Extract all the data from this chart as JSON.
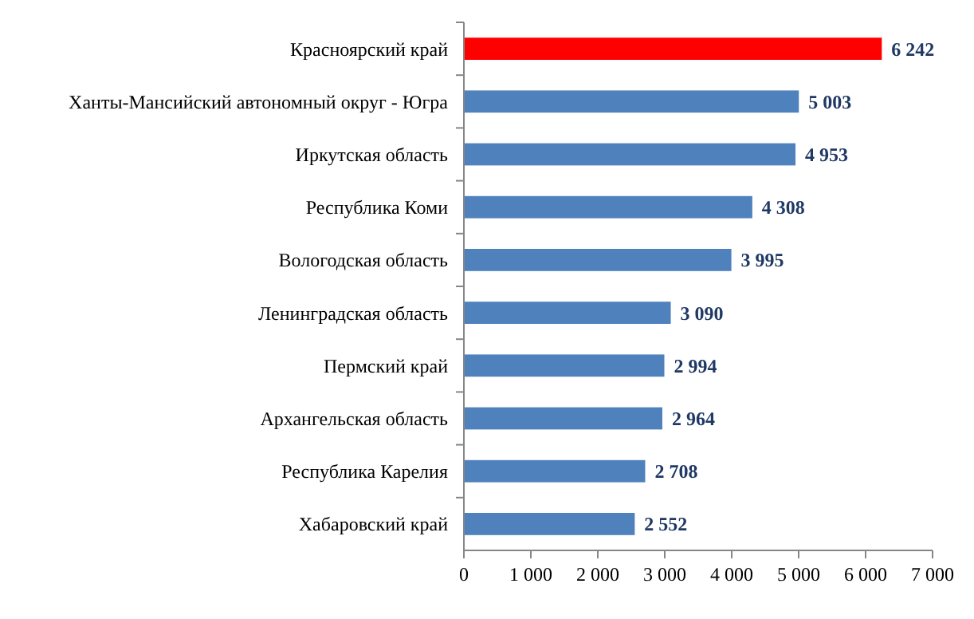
{
  "chart_data": {
    "type": "bar",
    "orientation": "horizontal",
    "categories": [
      "Красноярский край",
      "Ханты-Мансийский автономный округ - Югра",
      "Иркутская область",
      "Республика Коми",
      "Вологодская область",
      "Ленинградская область",
      "Пермский край",
      "Архангельская область",
      "Республика Карелия",
      "Хабаровский край"
    ],
    "values": [
      6242,
      5003,
      4953,
      4308,
      3995,
      3090,
      2994,
      2964,
      2708,
      2552
    ],
    "colors": [
      "#ff0000",
      "#4f81bd",
      "#4f81bd",
      "#4f81bd",
      "#4f81bd",
      "#4f81bd",
      "#4f81bd",
      "#4f81bd",
      "#4f81bd",
      "#4f81bd"
    ],
    "value_labels": [
      "6 242",
      "5 003",
      "4 953",
      "4 308",
      "3 995",
      "3 090",
      "2 994",
      "2 964",
      "2 708",
      "2 552"
    ],
    "xlim": [
      0,
      7000
    ],
    "xticks": [
      0,
      {
        "value": 1000,
        "label": "1 000"
      },
      {
        "value": 2000,
        "label": "2 000"
      },
      {
        "value": 3000,
        "label": "3 000"
      },
      {
        "value": 4000,
        "label": "4 000"
      },
      {
        "value": 5000,
        "label": "5 000"
      },
      {
        "value": 6000,
        "label": "6 000"
      },
      {
        "value": 7000,
        "label": "7 000"
      }
    ],
    "grid": false
  }
}
